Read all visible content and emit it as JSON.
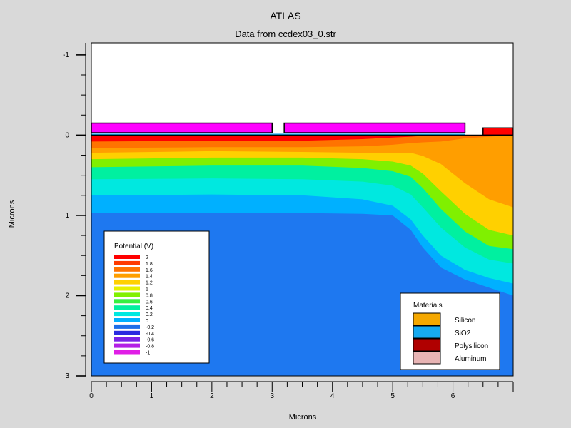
{
  "colors": {
    "background": "#d9d9d9",
    "silicon": "#f5a800",
    "sio2": "#16aaf0",
    "polysilicon": "#b00000",
    "aluminum": "#e8b4b4",
    "gate_contact": "#ff00ff",
    "right_contact": "#ff0000",
    "bulk": "#1e78f0"
  },
  "chart_data": {
    "type": "heatmap",
    "title": "ATLAS",
    "subtitle": "Data from ccdex03_0.str",
    "xlabel": "Microns",
    "ylabel": "Microns",
    "xlim": [
      0,
      7
    ],
    "ylim": [
      -1.15,
      3.0
    ],
    "y_inverted": true,
    "x_ticks": [
      0,
      1,
      2,
      3,
      4,
      5,
      6
    ],
    "x_tick_labels": [
      "0",
      "1",
      "2",
      "3",
      "4",
      "5",
      "6"
    ],
    "y_ticks": [
      -1,
      0,
      1,
      2,
      3
    ],
    "y_tick_labels": [
      "-1",
      "0",
      "1",
      "2",
      "3"
    ],
    "minor_step": 0.25,
    "colorbar": {
      "title": "Potential (V)",
      "levels": [
        2,
        1.8,
        1.6,
        1.4,
        1.2,
        1,
        0.8,
        0.6,
        0.4,
        0.2,
        0,
        -0.2,
        -0.4,
        -0.6,
        -0.8,
        -1
      ],
      "level_labels": [
        "2",
        "1.8",
        "1.6",
        "1.4",
        "1.2",
        "1",
        "0.8",
        "0.6",
        "0.4",
        "0.2",
        "0",
        "-0.2",
        "-0.4",
        "-0.6",
        "-0.8",
        "-1"
      ],
      "colors": [
        "#ff0000",
        "#ff3b00",
        "#ff7300",
        "#ff9e00",
        "#ffd000",
        "#e6f000",
        "#80f000",
        "#35f040",
        "#00f0a0",
        "#00e8e0",
        "#00b0ff",
        "#1e6fe8",
        "#2a2ae0",
        "#7a22e6",
        "#b41ee6",
        "#e01ee6"
      ]
    },
    "materials_legend": {
      "title": "Materials",
      "items": [
        {
          "label": "Silicon",
          "color": "#f5a800"
        },
        {
          "label": "SiO2",
          "color": "#16aaf0"
        },
        {
          "label": "Polysilicon",
          "color": "#b00000"
        },
        {
          "label": "Aluminum",
          "color": "#e8b4b4"
        }
      ]
    },
    "structures": [
      {
        "name": "left-gate",
        "x": [
          0,
          3.0
        ],
        "y": [
          -0.15,
          -0.03
        ]
      },
      {
        "name": "middle-gate",
        "x": [
          3.2,
          6.2
        ],
        "y": [
          -0.15,
          -0.03
        ]
      },
      {
        "name": "right-contact",
        "x": [
          6.5,
          7.0
        ],
        "y": [
          -0.09,
          0.0
        ]
      }
    ],
    "contour_bands": {
      "description": "Potential bands in silicon; depth (microns) of band boundaries at each x",
      "x": [
        0,
        2.0,
        3.5,
        4.5,
        5.0,
        5.3,
        5.5,
        5.8,
        6.2,
        6.6,
        7.0
      ],
      "boundaries": [
        {
          "value": 1.8,
          "depth": [
            0.08,
            0.07,
            0.07,
            0.05,
            0.03,
            0.02,
            0.01,
            0.0,
            0.0,
            0.0,
            0.0
          ]
        },
        {
          "value": 1.4,
          "depth": [
            0.16,
            0.15,
            0.15,
            0.14,
            0.12,
            0.1,
            0.09,
            0.08,
            0.04,
            0.02,
            0.0
          ]
        },
        {
          "value": 1.2,
          "depth": [
            0.22,
            0.2,
            0.21,
            0.22,
            0.22,
            0.22,
            0.26,
            0.36,
            0.6,
            0.8,
            0.9
          ]
        },
        {
          "value": 1.0,
          "depth": [
            0.3,
            0.28,
            0.28,
            0.3,
            0.33,
            0.38,
            0.48,
            0.7,
            0.98,
            1.18,
            1.25
          ]
        },
        {
          "value": 0.6,
          "depth": [
            0.4,
            0.38,
            0.38,
            0.41,
            0.45,
            0.52,
            0.66,
            0.92,
            1.2,
            1.38,
            1.42
          ]
        },
        {
          "value": 0.2,
          "depth": [
            0.55,
            0.54,
            0.55,
            0.58,
            0.63,
            0.74,
            0.9,
            1.15,
            1.4,
            1.55,
            1.6
          ]
        },
        {
          "value": 0.0,
          "depth": [
            0.75,
            0.74,
            0.75,
            0.8,
            0.88,
            1.05,
            1.25,
            1.5,
            1.68,
            1.78,
            1.85
          ]
        },
        {
          "value": -0.2,
          "depth": [
            0.97,
            0.97,
            0.97,
            0.98,
            1.0,
            1.18,
            1.4,
            1.65,
            1.8,
            1.9,
            2.0
          ]
        }
      ]
    }
  }
}
